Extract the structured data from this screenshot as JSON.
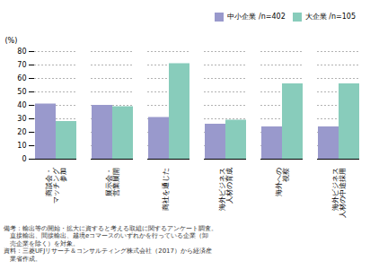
{
  "chart_data": {
    "type": "bar",
    "categories": [
      "商談会・\nマッチング\n参加",
      "展示会・\n営業展開",
      "商社を通じた\n",
      "海外ビジネス\n人材の育成",
      "海外への\n視察",
      "海外ビジネス\n人材の中途採用"
    ],
    "series": [
      {
        "name": "中小企業 /n=402",
        "color": "#9999cc",
        "values": [
          41,
          40,
          31,
          26,
          24,
          24
        ]
      },
      {
        "name": "大企業 /n=105",
        "color": "#88ccbb",
        "values": [
          28,
          39,
          71,
          29,
          56,
          56
        ]
      }
    ],
    "ylabel": "(%)",
    "ylim": [
      0,
      80
    ],
    "yticks": [
      0,
      10,
      20,
      30,
      40,
      50,
      60,
      70,
      80
    ],
    "grid": true,
    "legend": "upper right",
    "annotations": [
      "備考：輸出等の開始・拡大に資すると考える取組に関するアンケート調査。",
      "　直接輸出、間接輸出、越境eコマースのいずれかを行っている企業（卸",
      "　売企業を除く）を対象。",
      "資料：三菱UFJリサーチ＆コンサルティング株式会社（2017）から経済産",
      "　業省作成。"
    ]
  }
}
